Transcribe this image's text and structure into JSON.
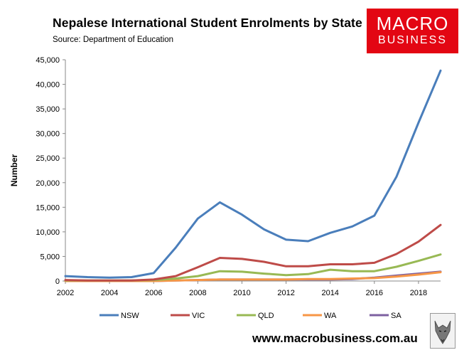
{
  "title": "Nepalese International Student Enrolments by State",
  "subtitle": "Source: Department of Education",
  "logo": {
    "line1": "MACRO",
    "line2": "BUSINESS"
  },
  "website": "www.macrobusiness.com.au",
  "chart_data": {
    "type": "line",
    "title": "Nepalese International Student Enrolments by State",
    "xlabel": "",
    "ylabel": "Number",
    "xlim": [
      2002,
      2019
    ],
    "ylim": [
      0,
      45000
    ],
    "x": [
      2002,
      2003,
      2004,
      2005,
      2006,
      2007,
      2008,
      2009,
      2010,
      2011,
      2012,
      2013,
      2014,
      2015,
      2016,
      2017,
      2018,
      2019
    ],
    "xticks": [
      2002,
      2004,
      2006,
      2008,
      2010,
      2012,
      2014,
      2016,
      2018
    ],
    "xtick_labels": [
      "2002",
      "2004",
      "2006",
      "2008",
      "2010",
      "2012",
      "2014",
      "2016",
      "2018"
    ],
    "yticks": [
      0,
      5000,
      10000,
      15000,
      20000,
      25000,
      30000,
      35000,
      40000,
      45000
    ],
    "ytick_labels": [
      "0",
      "5,000",
      "10,000",
      "15,000",
      "20,000",
      "25,000",
      "30,000",
      "35,000",
      "40,000",
      "45,000"
    ],
    "grid": false,
    "legend_position": "bottom",
    "series": [
      {
        "name": "NSW",
        "color": "#4a7ebb",
        "values": [
          1000,
          800,
          700,
          800,
          1600,
          6800,
          12700,
          16000,
          13500,
          10500,
          8400,
          8100,
          9800,
          11100,
          13300,
          21200,
          32200,
          42800
        ]
      },
      {
        "name": "VIC",
        "color": "#be4b48",
        "values": [
          200,
          100,
          100,
          100,
          300,
          1000,
          2800,
          4700,
          4500,
          3900,
          3000,
          3000,
          3400,
          3400,
          3700,
          5500,
          8000,
          11400
        ]
      },
      {
        "name": "QLD",
        "color": "#98b954",
        "values": [
          100,
          100,
          100,
          100,
          200,
          500,
          1000,
          2000,
          1900,
          1500,
          1200,
          1400,
          2300,
          2000,
          2000,
          2900,
          4100,
          5400
        ]
      },
      {
        "name": "WA",
        "color": "#f79646",
        "values": [
          0,
          0,
          0,
          0,
          0,
          100,
          200,
          300,
          300,
          300,
          300,
          400,
          400,
          500,
          600,
          900,
          1300,
          1800
        ]
      },
      {
        "name": "SA",
        "color": "#7d60a0",
        "values": [
          0,
          0,
          0,
          0,
          0,
          100,
          200,
          300,
          300,
          300,
          300,
          300,
          300,
          400,
          700,
          1100,
          1500,
          1900
        ]
      }
    ]
  }
}
